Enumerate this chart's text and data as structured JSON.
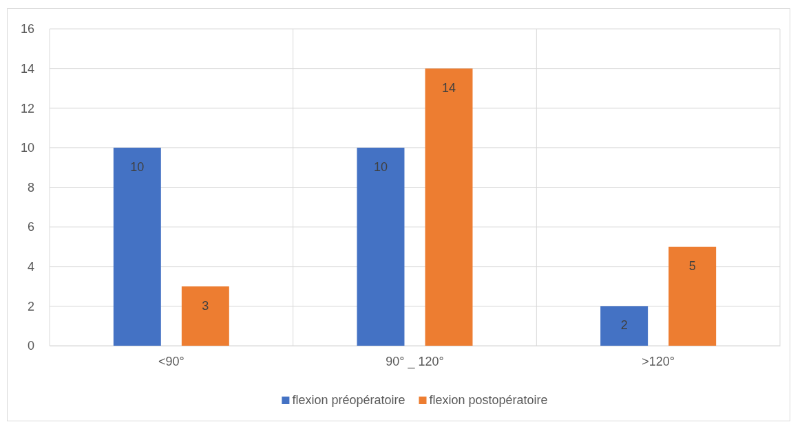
{
  "chart_data": {
    "type": "bar",
    "categories": [
      "<90°",
      "90° _ 120°",
      ">120°"
    ],
    "series": [
      {
        "name": "flexion préopératoire",
        "color": "#4472c4",
        "values": [
          10,
          10,
          2
        ]
      },
      {
        "name": "flexion postopératoire",
        "color": "#ed7d31",
        "values": [
          3,
          14,
          5
        ]
      }
    ],
    "ylim": [
      0,
      16
    ],
    "yticks": [
      0,
      2,
      4,
      6,
      8,
      10,
      12,
      14,
      16
    ],
    "grid": true,
    "legend": "bottom",
    "data_labels": true
  }
}
